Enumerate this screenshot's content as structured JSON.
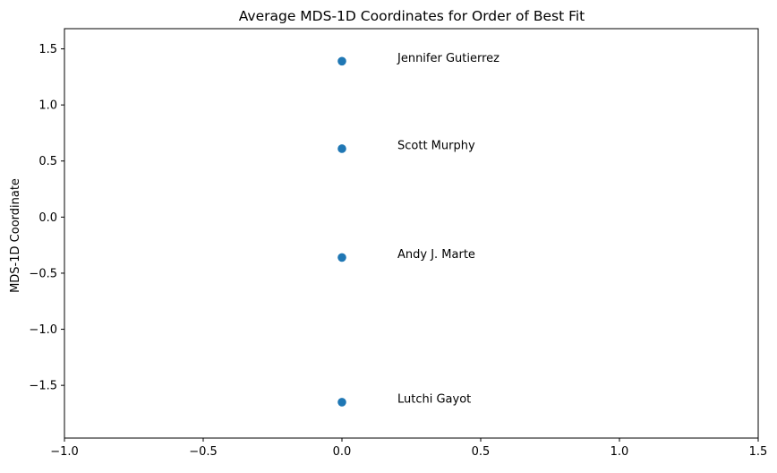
{
  "chart_data": {
    "type": "scatter",
    "title": "Average MDS-1D Coordinates for Order of Best Fit",
    "xlabel": "",
    "ylabel": "MDS-1D Coordinate",
    "xlim": [
      -1.0,
      1.5
    ],
    "ylim": [
      -1.97,
      1.68
    ],
    "x_ticks": [
      -1.0,
      -0.5,
      0.0,
      0.5,
      1.0,
      1.5
    ],
    "x_tick_labels": [
      "−1.0",
      "−0.5",
      "0.0",
      "0.5",
      "1.0",
      "1.5"
    ],
    "y_ticks": [
      1.5,
      1.0,
      0.5,
      0.0,
      -0.5,
      -1.0,
      -1.5
    ],
    "y_tick_labels": [
      "1.5",
      "1.0",
      "0.5",
      "0.0",
      "−0.5",
      "−1.0",
      "−1.5"
    ],
    "grid": false,
    "marker_color": "#1f77b4",
    "label_x_offset": 0.2,
    "points": [
      {
        "label": "Jennifer Gutierrez",
        "x": 0.0,
        "y": 1.39
      },
      {
        "label": "Scott Murphy",
        "x": 0.0,
        "y": 0.61
      },
      {
        "label": "Andy J. Marte",
        "x": 0.0,
        "y": -0.36
      },
      {
        "label": "Lutchi Gayot",
        "x": 0.0,
        "y": -1.65
      }
    ]
  }
}
